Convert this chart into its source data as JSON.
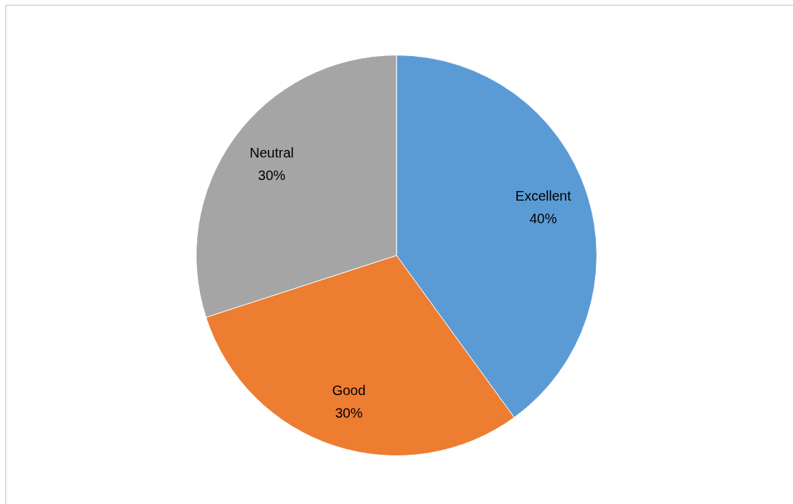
{
  "chart_data": {
    "type": "pie",
    "categories": [
      "Excellent",
      "Good",
      "Neutral"
    ],
    "values": [
      40,
      30,
      30
    ],
    "colors": [
      "#5b9bd5",
      "#ed7d31",
      "#a5a5a5"
    ],
    "value_labels": [
      "40%",
      "30%",
      "30%"
    ],
    "legend": false
  }
}
